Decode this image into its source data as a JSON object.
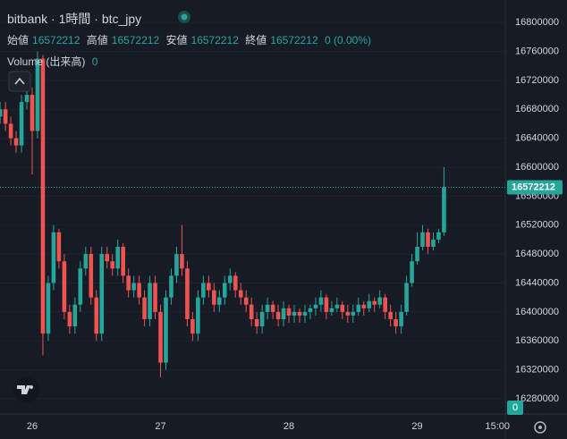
{
  "chart_data": {
    "type": "candlestick",
    "title": "bitbank · 1時間 · btc_jpy",
    "legend": [
      {
        "label": "始値",
        "value": 16572212
      },
      {
        "label": "高値",
        "value": 16572212
      },
      {
        "label": "安値",
        "value": 16572212
      },
      {
        "label": "終値",
        "value": 16572212
      }
    ],
    "change": "0 (0.00%)",
    "volume_label": "Volume (出来高)",
    "volume_value": 0,
    "x_axis_label": "15:00",
    "categories": [
      null,
      null,
      null,
      null,
      null,
      null,
      "26",
      null,
      null,
      null,
      null,
      null,
      null,
      null,
      null,
      null,
      null,
      null,
      null,
      null,
      null,
      null,
      null,
      null,
      null,
      null,
      null,
      null,
      null,
      null,
      "27",
      null,
      null,
      null,
      null,
      null,
      null,
      null,
      null,
      null,
      null,
      null,
      null,
      null,
      null,
      null,
      null,
      null,
      null,
      null,
      null,
      null,
      null,
      null,
      "28",
      null,
      null,
      null,
      null,
      null,
      null,
      null,
      null,
      null,
      null,
      null,
      null,
      null,
      null,
      null,
      null,
      null,
      null,
      null,
      null,
      null,
      null,
      null,
      "29",
      null,
      null,
      null,
      null,
      null,
      null,
      null,
      null,
      null,
      null,
      null,
      null,
      null,
      null,
      "15:00"
    ],
    "open": [
      16670000,
      16680000,
      16660000,
      16640000,
      16630000,
      16690000,
      16700000,
      16650000,
      16750000,
      16370000,
      16440000,
      16510000,
      16470000,
      16400000,
      16380000,
      16410000,
      16460000,
      16480000,
      16420000,
      16370000,
      16480000,
      16470000,
      16460000,
      16490000,
      16450000,
      16430000,
      16440000,
      16420000,
      16390000,
      16440000,
      16400000,
      16330000,
      16420000,
      16450000,
      16480000,
      16460000,
      16390000,
      16370000,
      16420000,
      16440000,
      16430000,
      16410000,
      16420000,
      16440000,
      16450000,
      16430000,
      16420000,
      16410000,
      16390000,
      16380000,
      16400000,
      16410000,
      16400000,
      16390000,
      16405000,
      16395000,
      16400000,
      16395000,
      16400000,
      16405000,
      16410000,
      16420000,
      16400000,
      16405000,
      16410000,
      16400000,
      16395000,
      16400000,
      16410000,
      16405000,
      16415000,
      16410000,
      16420000,
      16400000,
      16390000,
      16380000,
      16400000,
      16440000,
      16470000,
      16490000,
      16510000,
      16490000,
      16500000,
      16510000,
      null,
      null,
      null,
      null,
      null,
      null,
      null,
      null,
      null,
      null
    ],
    "high": [
      16690000,
      16690000,
      16670000,
      16650000,
      16700000,
      16710000,
      16710000,
      16760000,
      16755000,
      16450000,
      16520000,
      16515000,
      16480000,
      16410000,
      16420000,
      16470000,
      16490000,
      16490000,
      16430000,
      16490000,
      16490000,
      16480000,
      16500000,
      16495000,
      16460000,
      16450000,
      16450000,
      16430000,
      16450000,
      16450000,
      16410000,
      16430000,
      16460000,
      16490000,
      16520000,
      16470000,
      16400000,
      16430000,
      16450000,
      16450000,
      16440000,
      16430000,
      16450000,
      16460000,
      16455000,
      16440000,
      16430000,
      16420000,
      16400000,
      16410000,
      16420000,
      16415000,
      16410000,
      16415000,
      16410000,
      16410000,
      16405000,
      16410000,
      16410000,
      16420000,
      16430000,
      16425000,
      16415000,
      16420000,
      16415000,
      16410000,
      16410000,
      16420000,
      16415000,
      16425000,
      16420000,
      16430000,
      16425000,
      16410000,
      16400000,
      16410000,
      16450000,
      16480000,
      16510000,
      16520000,
      16515000,
      16510000,
      16515000,
      16600000,
      null,
      null,
      null,
      null,
      null,
      null,
      null,
      null,
      null,
      null
    ],
    "low": [
      16660000,
      16650000,
      16630000,
      16620000,
      16620000,
      16680000,
      16590000,
      16640000,
      16340000,
      16360000,
      16430000,
      16460000,
      16390000,
      16370000,
      16370000,
      16400000,
      16450000,
      16410000,
      16360000,
      16360000,
      16460000,
      16450000,
      16450000,
      16440000,
      16420000,
      16420000,
      16410000,
      16380000,
      16380000,
      16390000,
      16310000,
      16320000,
      16410000,
      16440000,
      16450000,
      16380000,
      16360000,
      16360000,
      16410000,
      16420000,
      16400000,
      16400000,
      16410000,
      16430000,
      16420000,
      16410000,
      16400000,
      16380000,
      16370000,
      16370000,
      16390000,
      16390000,
      16380000,
      16380000,
      16385000,
      16385000,
      16385000,
      16385000,
      16390000,
      16395000,
      16400000,
      16390000,
      16395000,
      16400000,
      16390000,
      16385000,
      16385000,
      16395000,
      16395000,
      16400000,
      16400000,
      16405000,
      16390000,
      16380000,
      16370000,
      16370000,
      16395000,
      16435000,
      16465000,
      16485000,
      16480000,
      16485000,
      16495000,
      16505000,
      null,
      null,
      null,
      null,
      null,
      null,
      null,
      null,
      null,
      null
    ],
    "close": [
      16680000,
      16660000,
      16640000,
      16630000,
      16690000,
      16700000,
      16650000,
      16750000,
      16370000,
      16440000,
      16510000,
      16470000,
      16400000,
      16380000,
      16410000,
      16460000,
      16480000,
      16420000,
      16370000,
      16480000,
      16470000,
      16460000,
      16490000,
      16450000,
      16430000,
      16440000,
      16420000,
      16390000,
      16440000,
      16400000,
      16330000,
      16420000,
      16450000,
      16480000,
      16460000,
      16390000,
      16370000,
      16420000,
      16440000,
      16430000,
      16410000,
      16420000,
      16440000,
      16450000,
      16430000,
      16420000,
      16410000,
      16390000,
      16380000,
      16400000,
      16410000,
      16400000,
      16390000,
      16405000,
      16395000,
      16400000,
      16395000,
      16400000,
      16405000,
      16410000,
      16420000,
      16400000,
      16405000,
      16410000,
      16400000,
      16395000,
      16400000,
      16410000,
      16405000,
      16415000,
      16410000,
      16420000,
      16400000,
      16390000,
      16380000,
      16400000,
      16440000,
      16470000,
      16490000,
      16510000,
      16490000,
      16500000,
      16510000,
      16572212,
      null,
      null,
      null,
      null,
      null,
      null,
      null,
      null,
      null,
      null
    ],
    "up_color": "#26a69a",
    "down_color": "#ef5350",
    "ylim": [
      16259000,
      16831000
    ],
    "yticks": [
      16280000,
      16320000,
      16360000,
      16400000,
      16440000,
      16480000,
      16520000,
      16560000,
      16600000,
      16640000,
      16680000,
      16720000,
      16760000,
      16800000
    ],
    "grid": true
  }
}
